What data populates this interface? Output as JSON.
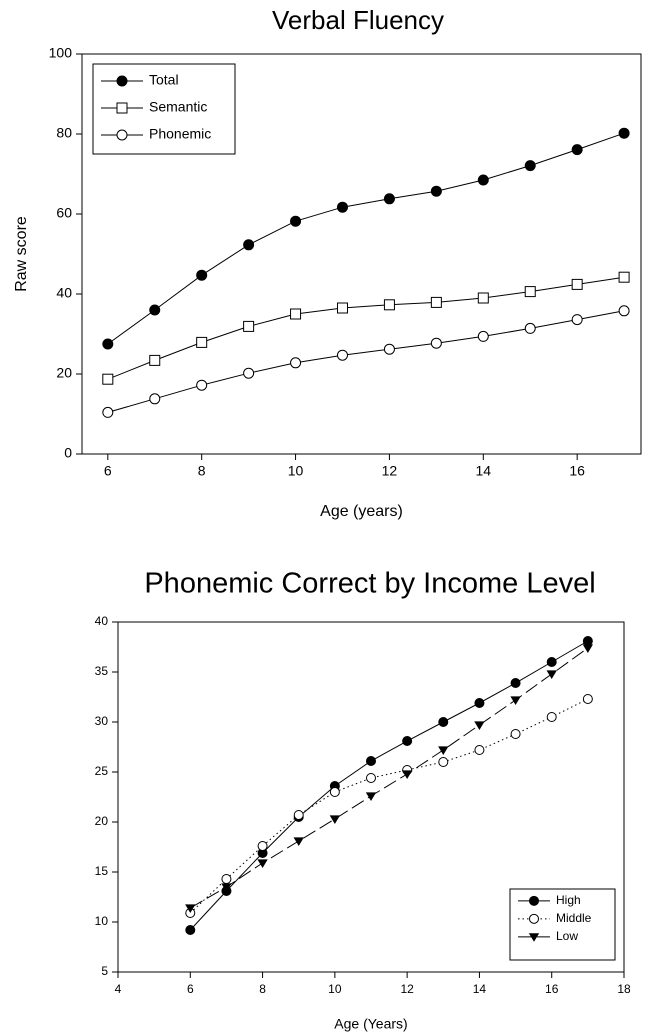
{
  "chart_data": [
    {
      "type": "line",
      "title": "Verbal Fluency",
      "xlabel": "Age (years)",
      "ylabel": "Raw score",
      "x": [
        6,
        7,
        8,
        9,
        10,
        11,
        12,
        13,
        14,
        15,
        16,
        17
      ],
      "xlim": [
        5.45,
        17.36
      ],
      "xticks": [
        6,
        8,
        10,
        12,
        14,
        16
      ],
      "ylim": [
        0,
        100
      ],
      "yticks": [
        0,
        20,
        40,
        60,
        80,
        100
      ],
      "legend": "upper-left",
      "series": [
        {
          "name": "Total",
          "color": "#000000",
          "marker": "filled-circle",
          "dash": "solid",
          "values": [
            27.5,
            36,
            44.7,
            52.3,
            58.2,
            61.7,
            63.8,
            65.7,
            68.5,
            72.1,
            76.1,
            80.2
          ]
        },
        {
          "name": "Semantic",
          "color": "#000000",
          "marker": "open-square",
          "dash": "solid",
          "values": [
            18.7,
            23.4,
            27.9,
            31.9,
            35,
            36.5,
            37.3,
            37.9,
            39,
            40.6,
            42.4,
            44.2
          ]
        },
        {
          "name": "Phonemic",
          "color": "#000000",
          "marker": "open-circle",
          "dash": "solid",
          "values": [
            10.4,
            13.8,
            17.2,
            20.2,
            22.8,
            24.7,
            26.2,
            27.7,
            29.4,
            31.4,
            33.6,
            35.8
          ]
        }
      ]
    },
    {
      "type": "line",
      "title": "Phonemic Correct by Income Level",
      "xlabel": "Age (Years)",
      "x": [
        6,
        7,
        8,
        9,
        10,
        11,
        12,
        13,
        14,
        15,
        16,
        17
      ],
      "xlim": [
        4,
        18
      ],
      "xticks": [
        4,
        6,
        8,
        10,
        12,
        14,
        16,
        18
      ],
      "ylim": [
        5,
        40
      ],
      "yticks": [
        5,
        10,
        15,
        20,
        25,
        30,
        35,
        40
      ],
      "legend": "lower-right",
      "series": [
        {
          "name": "High",
          "color": "#000000",
          "marker": "filled-circle",
          "dash": "solid",
          "values": [
            9.2,
            13.1,
            16.9,
            20.5,
            23.6,
            26.1,
            28.1,
            30,
            31.9,
            33.9,
            36,
            38.1
          ]
        },
        {
          "name": "Middle",
          "color": "#000000",
          "marker": "open-circle",
          "dash": "dotted",
          "values": [
            10.9,
            14.3,
            17.6,
            20.7,
            23,
            24.4,
            25.2,
            26,
            27.2,
            28.8,
            30.5,
            32.3
          ]
        },
        {
          "name": "Low",
          "color": "#000000",
          "marker": "filled-triangle-down",
          "dash": "dashed",
          "values": [
            11.4,
            13.5,
            15.9,
            18.1,
            20.3,
            22.6,
            24.8,
            27.2,
            29.7,
            32.2,
            34.8,
            37.4
          ]
        }
      ]
    }
  ]
}
